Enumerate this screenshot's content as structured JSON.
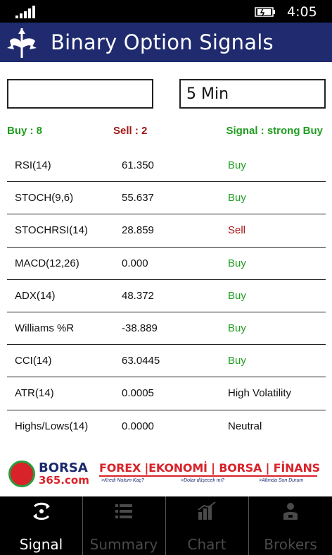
{
  "status": {
    "time": "4:05"
  },
  "header": {
    "title": "Binary Option Signals"
  },
  "inputs": {
    "left_value": "",
    "right_value": "5 Min"
  },
  "summary": {
    "buy": "Buy : 8",
    "sell": "Sell : 2",
    "signal": "Signal : strong Buy"
  },
  "colors": {
    "header_bg": "#1f2b6e",
    "buy": "#1f9c1f",
    "sell": "#a01818",
    "neutral": "#111111"
  },
  "indicators": [
    {
      "name": "RSI(14)",
      "value": "61.350",
      "signal": "Buy",
      "type": "buy"
    },
    {
      "name": "STOCH(9,6)",
      "value": "55.637",
      "signal": "Buy",
      "type": "buy"
    },
    {
      "name": "STOCHRSI(14)",
      "value": "28.859",
      "signal": "Sell",
      "type": "sell"
    },
    {
      "name": "MACD(12,26)",
      "value": "0.000",
      "signal": "Buy",
      "type": "buy"
    },
    {
      "name": "ADX(14)",
      "value": "48.372",
      "signal": "Buy",
      "type": "buy"
    },
    {
      "name": "Williams %R",
      "value": "-38.889",
      "signal": "Buy",
      "type": "buy"
    },
    {
      "name": "CCI(14)",
      "value": "63.0445",
      "signal": "Buy",
      "type": "buy"
    },
    {
      "name": "ATR(14)",
      "value": "0.0005",
      "signal": "High Volatility",
      "type": "neutral"
    },
    {
      "name": "Highs/Lows(14)",
      "value": "0.0000",
      "signal": "Neutral",
      "type": "neutral"
    }
  ],
  "banner": {
    "brand": "BORSA",
    "brand_sub": "365.com",
    "headline": "FOREX |EKONOMİ | BORSA | FİNANS",
    "tags": [
      ">Kredi Notum Kaç?",
      ">Dolar düşecek mi?",
      ">Altında Son Durum"
    ]
  },
  "nav": [
    {
      "label": "Signal",
      "icon": "signal-icon",
      "active": true
    },
    {
      "label": "Summary",
      "icon": "list-icon",
      "active": false
    },
    {
      "label": "Chart",
      "icon": "chart-icon",
      "active": false
    },
    {
      "label": "Brokers",
      "icon": "broker-icon",
      "active": false
    }
  ]
}
